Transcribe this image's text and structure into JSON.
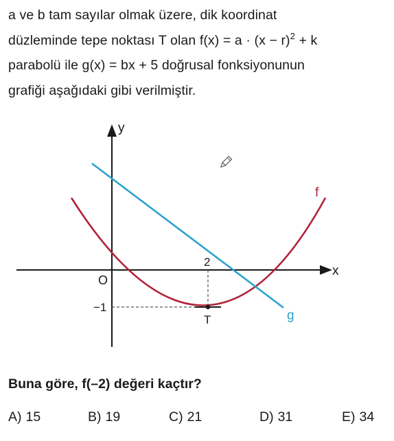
{
  "question": {
    "line1": "a ve b tam sayılar olmak üzere, dik koordinat",
    "line2_pre": "düzleminde tepe noktası T olan f(x) = a",
    "line2_dot": "·",
    "line2_mid": "(x − r)",
    "line2_exp": "2",
    "line2_post": " + k",
    "line3": "parabolü ile g(x) = bx + 5 doğrusal fonksiyonunun",
    "line4": "grafiği aşağıdaki gibi verilmiştir."
  },
  "graph": {
    "axis_x_label": "x",
    "axis_y_label": "y",
    "origin_label": "O",
    "x_tick_label": "2",
    "y_tick_label": "−1",
    "vertex_label": "T",
    "f_label": "f",
    "g_label": "g",
    "colors": {
      "parabola": "#b0243a",
      "line": "#2aa3cc",
      "axis": "#1a1a1a",
      "dashed": "#555555",
      "pencil": "#888888"
    },
    "icon": "pencil-icon"
  },
  "prompt": "Buna göre, f(–2) değeri kaçtır?",
  "options": [
    {
      "letter": "A)",
      "value": "15"
    },
    {
      "letter": "B)",
      "value": "19"
    },
    {
      "letter": "C)",
      "value": "21"
    },
    {
      "letter": "D)",
      "value": "31"
    },
    {
      "letter": "E)",
      "value": "34"
    }
  ]
}
